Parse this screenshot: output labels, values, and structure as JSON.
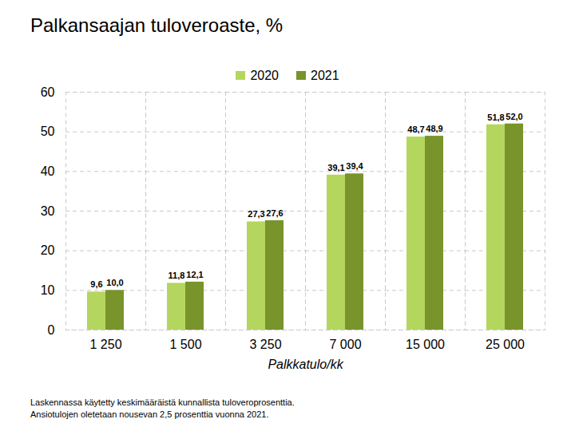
{
  "chart_data": {
    "type": "bar",
    "title": "Palkansaajan tuloveroaste, %",
    "x_label": "Palkkatulo/kk",
    "categories": [
      "1 250",
      "1 500",
      "3 250",
      "7 000",
      "15 000",
      "25 000"
    ],
    "series": [
      {
        "name": "2020",
        "color": "#b4d65e",
        "values": [
          9.6,
          11.8,
          27.3,
          39.1,
          48.7,
          51.8
        ],
        "value_labels": [
          "9,6",
          "11,8",
          "27,3",
          "39,1",
          "48,7",
          "51,8"
        ]
      },
      {
        "name": "2021",
        "color": "#78942a",
        "values": [
          10.0,
          12.1,
          27.6,
          39.4,
          48.9,
          52.0
        ],
        "value_labels": [
          "10,0",
          "12,1",
          "27,6",
          "39,4",
          "48,9",
          "52,0"
        ]
      }
    ],
    "ylim": [
      0,
      60
    ],
    "yticks": [
      0,
      10,
      20,
      30,
      40,
      50,
      60
    ],
    "grid": true,
    "legend": "top",
    "data_labels": true,
    "annotations": [
      "Laskennassa käytetty keskimääräistä kunnallista tuloveroprosenttia.",
      "Ansiotulojen oletetaan nousevan 2,5 prosenttia vuonna 2021."
    ]
  }
}
